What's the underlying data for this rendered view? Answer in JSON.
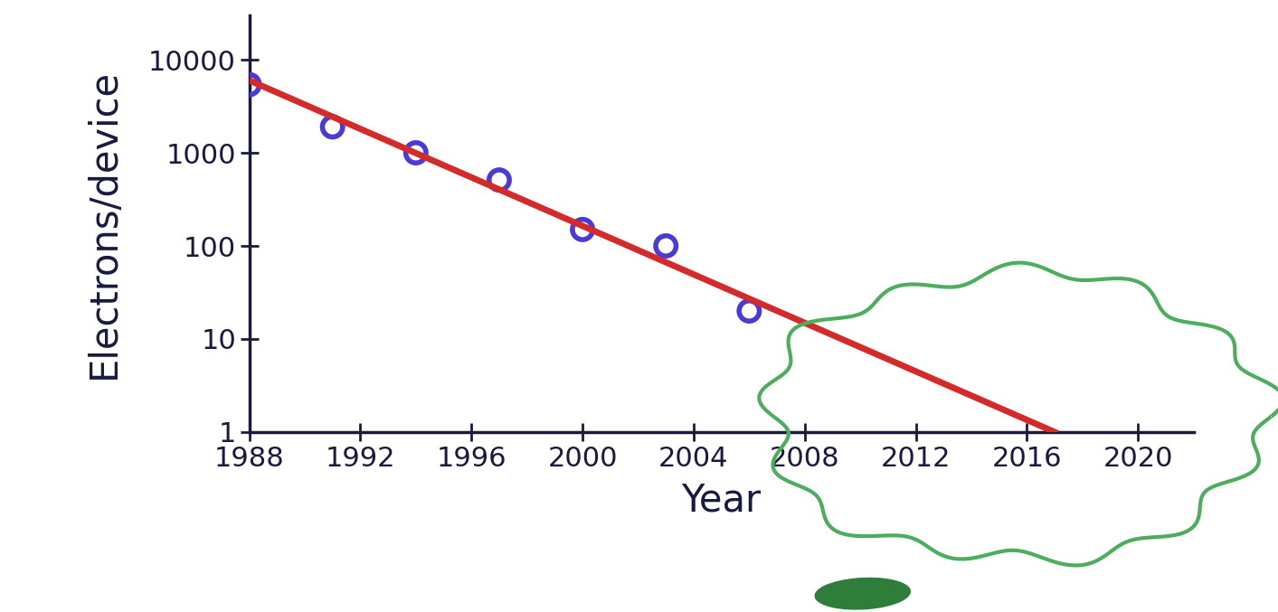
{
  "chart_data": {
    "type": "line",
    "x_label": "Year",
    "y_label": "Electrons/device",
    "log": "y",
    "grid": false,
    "xlim": [
      1988,
      2022
    ],
    "xticks": [
      1988,
      1992,
      1996,
      2000,
      2004,
      2008,
      2012,
      2016,
      2020
    ],
    "ylim": [
      1,
      30000
    ],
    "yticks": [
      1,
      10,
      100,
      1000,
      10000
    ],
    "series": [
      {
        "type": "scatter",
        "color": "#4a3bd8",
        "marker": "o",
        "x": [
          1988,
          1991,
          1994,
          1997,
          2000,
          2003,
          2006
        ],
        "values": [
          5400,
          1900,
          1000,
          510,
          150,
          100,
          20
        ]
      },
      {
        "type": "line",
        "color": "#d42a2a",
        "line_style": "solid",
        "x": [
          1988,
          2017
        ],
        "values": [
          6000,
          1
        ]
      }
    ]
  }
}
